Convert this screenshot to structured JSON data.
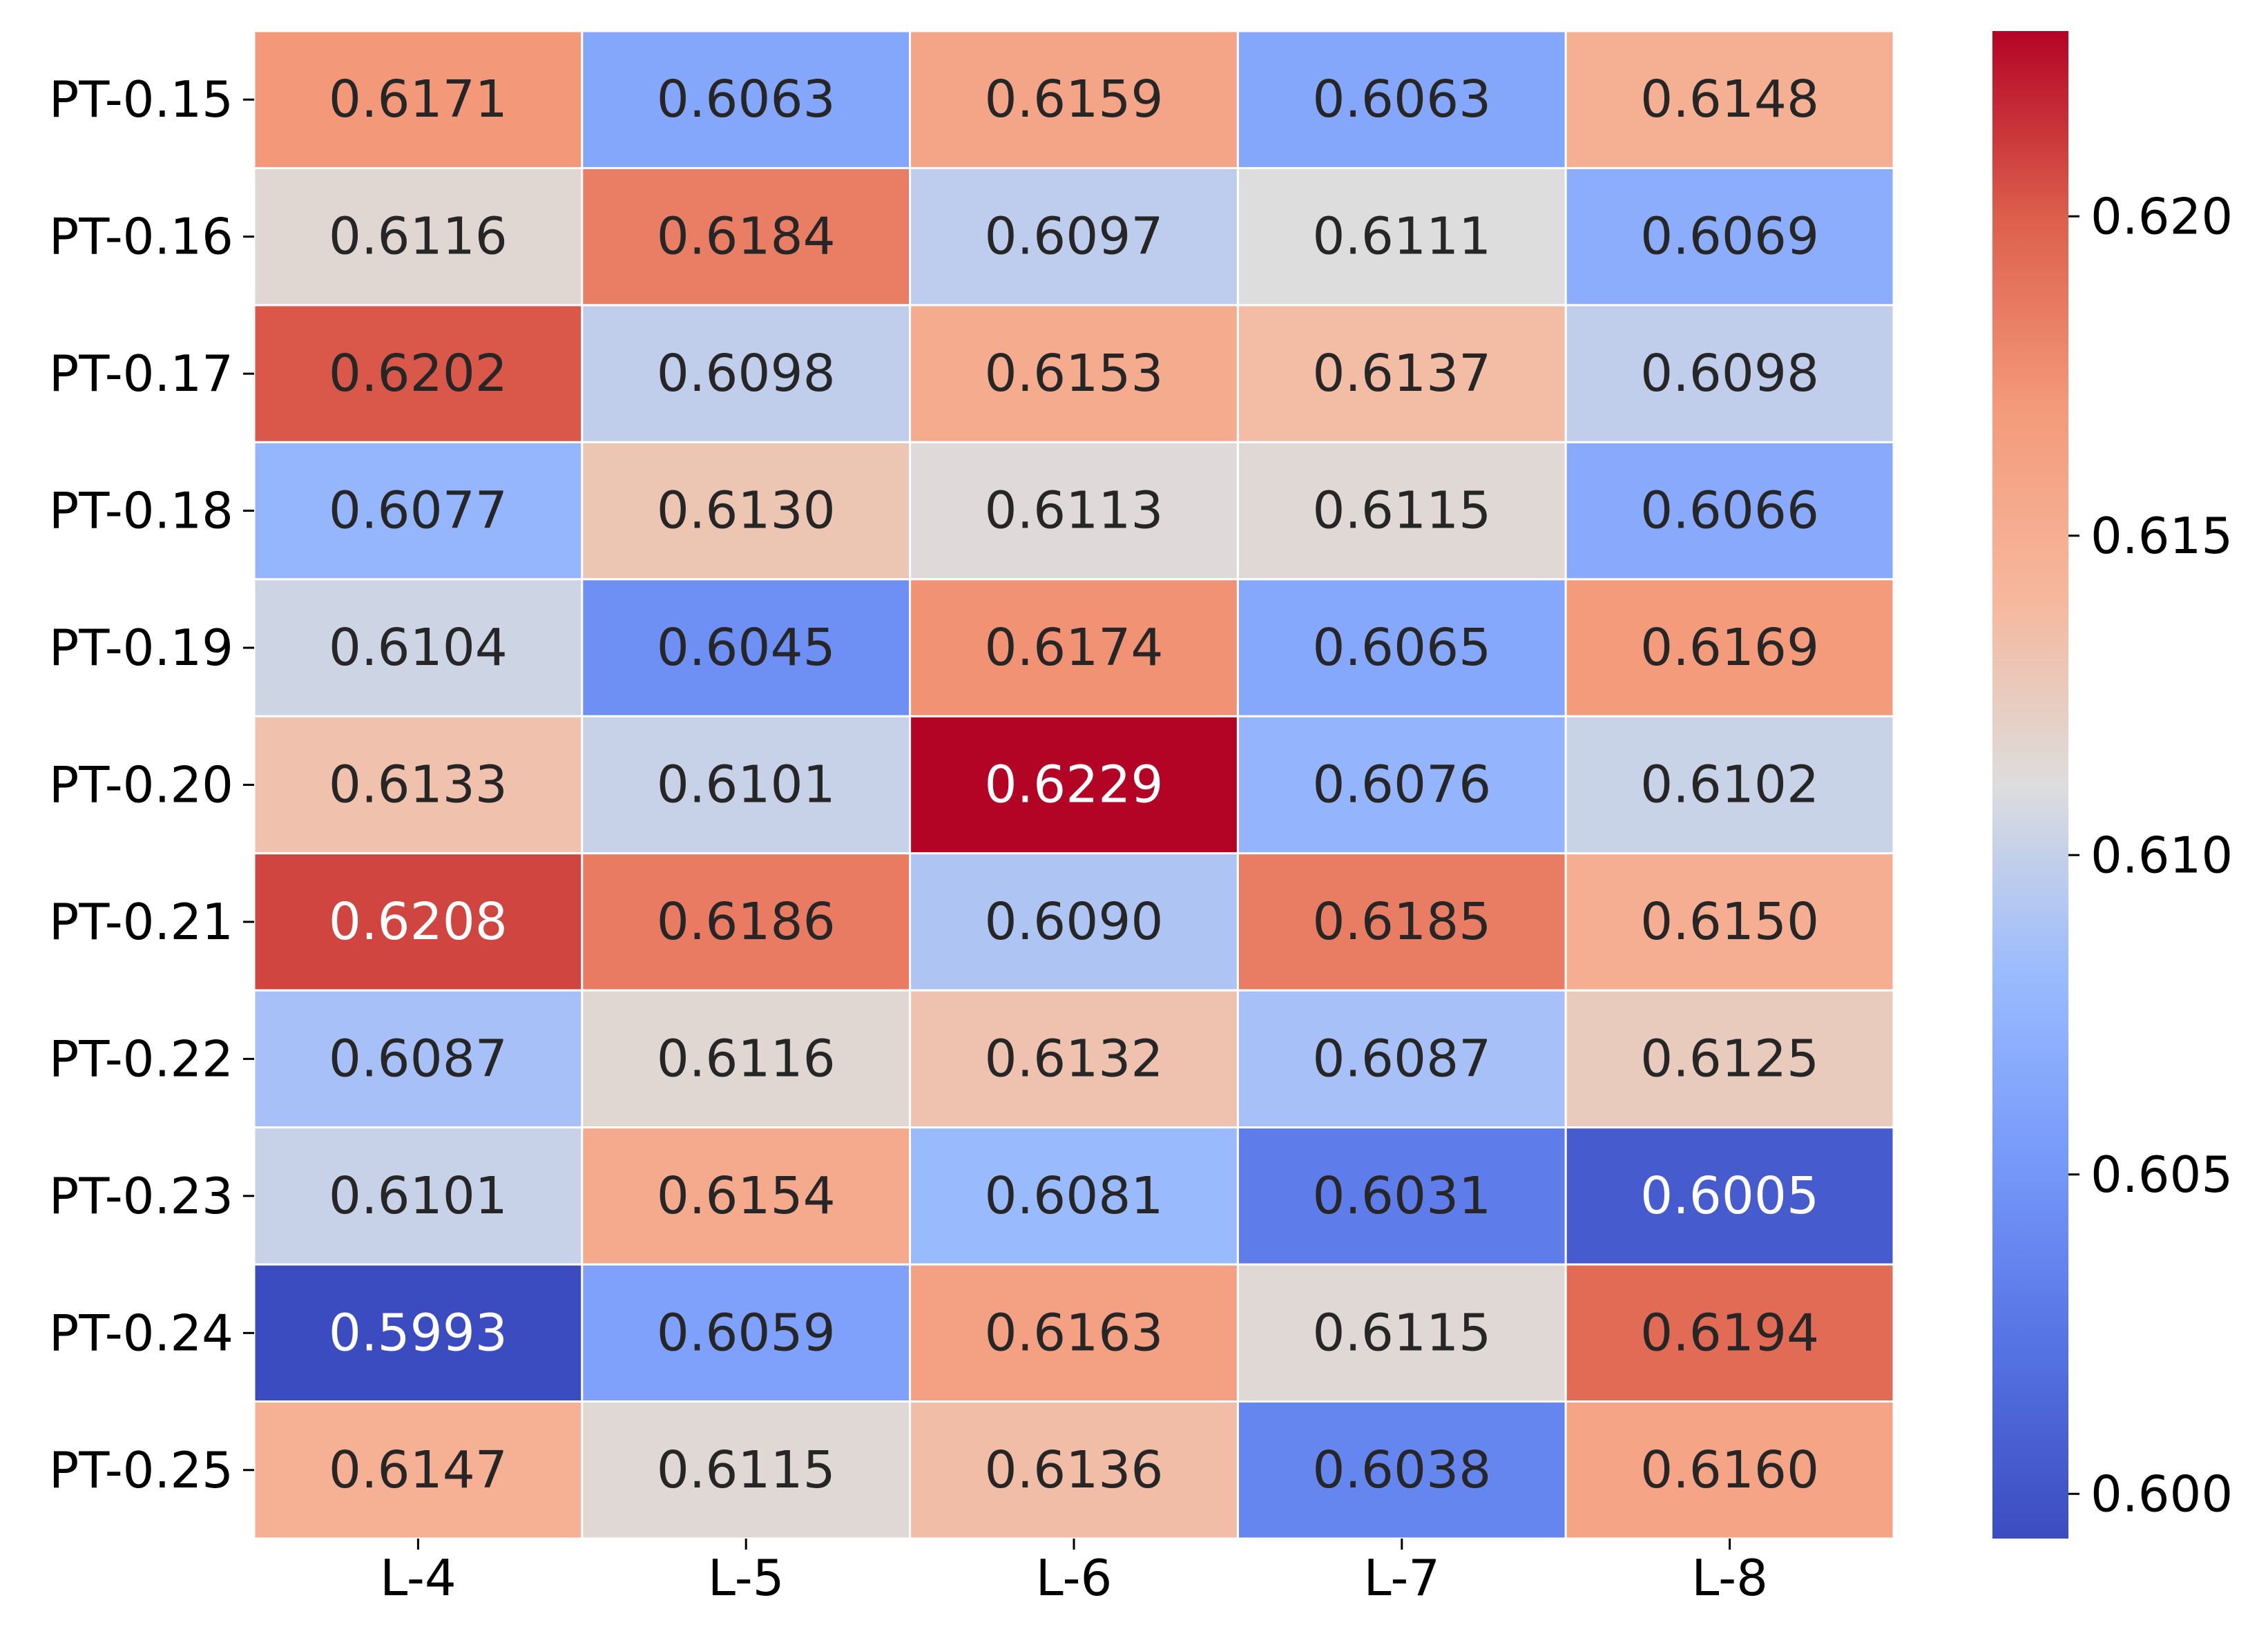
{
  "chart_data": {
    "type": "heatmap",
    "title": "",
    "xlabel": "",
    "ylabel": "",
    "x_categories": [
      "L-4",
      "L-5",
      "L-6",
      "L-7",
      "L-8"
    ],
    "y_categories": [
      "PT-0.15",
      "PT-0.16",
      "PT-0.17",
      "PT-0.18",
      "PT-0.19",
      "PT-0.20",
      "PT-0.21",
      "PT-0.22",
      "PT-0.23",
      "PT-0.24",
      "PT-0.25"
    ],
    "values": [
      [
        0.6171,
        0.6063,
        0.6159,
        0.6063,
        0.6148
      ],
      [
        0.6116,
        0.6184,
        0.6097,
        0.6111,
        0.6069
      ],
      [
        0.6202,
        0.6098,
        0.6153,
        0.6137,
        0.6098
      ],
      [
        0.6077,
        0.613,
        0.6113,
        0.6115,
        0.6066
      ],
      [
        0.6104,
        0.6045,
        0.6174,
        0.6065,
        0.6169
      ],
      [
        0.6133,
        0.6101,
        0.6229,
        0.6076,
        0.6102
      ],
      [
        0.6208,
        0.6186,
        0.609,
        0.6185,
        0.615
      ],
      [
        0.6087,
        0.6116,
        0.6132,
        0.6087,
        0.6125
      ],
      [
        0.6101,
        0.6154,
        0.6081,
        0.6031,
        0.6005
      ],
      [
        0.5993,
        0.6059,
        0.6163,
        0.6115,
        0.6194
      ],
      [
        0.6147,
        0.6115,
        0.6136,
        0.6038,
        0.616
      ]
    ],
    "value_format": 4,
    "colormap": "coolwarm",
    "vmin": 0.5993,
    "vmax": 0.6229,
    "colorbar": {
      "ticks": [
        0.6,
        0.605,
        0.61,
        0.615,
        0.62
      ],
      "tick_labels": [
        "0.600",
        "0.605",
        "0.610",
        "0.615",
        "0.620"
      ]
    },
    "colors": {
      "low": "#3b4cc0",
      "mid": "#dddddd",
      "high": "#b40426",
      "grid_line": "#ffffff",
      "text_dark": "#262626",
      "text_light": "#ffffff"
    }
  }
}
